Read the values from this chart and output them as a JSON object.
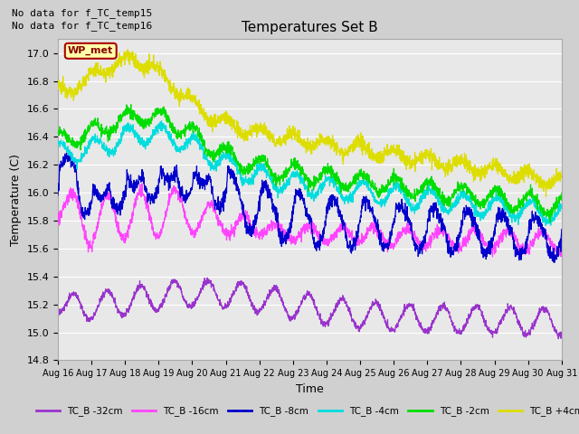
{
  "title": "Temperatures Set B",
  "xlabel": "Time",
  "ylabel": "Temperature (C)",
  "ylim": [
    14.8,
    17.1
  ],
  "duration_days": 15,
  "annotations": [
    "No data for f_TC_temp15",
    "No data for f_TC_temp16"
  ],
  "wp_met_label": "WP_met",
  "fig_bg_color": "#d0d0d0",
  "plot_bg_color": "#e8e8e8",
  "grid_color": "#ffffff",
  "series_colors": {
    "p4cm": "#dddd00",
    "m2cm": "#00dd00",
    "m4cm": "#00dddd",
    "m8cm": "#0000cc",
    "m16cm": "#ff44ff",
    "m32cm": "#9933cc"
  },
  "series_labels": {
    "m32cm": "TC_B -32cm",
    "m16cm": "TC_B -16cm",
    "m8cm": "TC_B -8cm",
    "m4cm": "TC_B -4cm",
    "m2cm": "TC_B -2cm",
    "p4cm": "TC_B +4cm"
  },
  "tick_labels": [
    "Aug 16",
    "Aug 17",
    "Aug 18",
    "Aug 19",
    "Aug 20",
    "Aug 21",
    "Aug 22",
    "Aug 23",
    "Aug 24",
    "Aug 25",
    "Aug 26",
    "Aug 27",
    "Aug 28",
    "Aug 29",
    "Aug 30",
    "Aug 31"
  ],
  "n_points": 2160,
  "wp_met_box_color": "#ffffaa",
  "wp_met_text_color": "#880000",
  "wp_met_edge_color": "#aa0000"
}
